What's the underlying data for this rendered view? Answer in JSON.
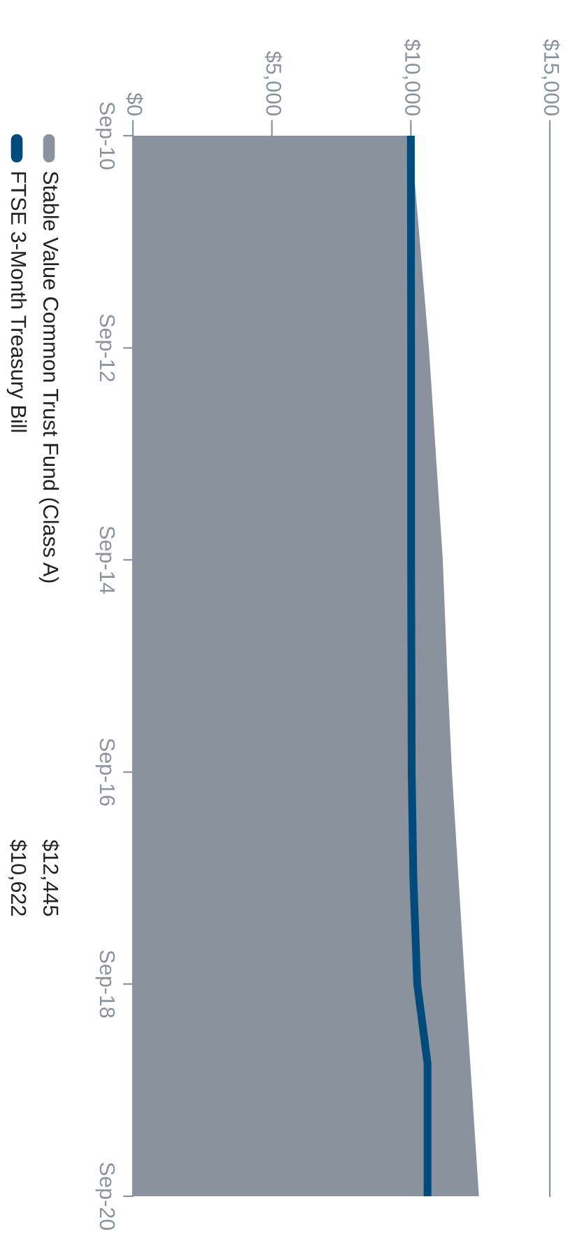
{
  "chart_data": {
    "type": "area",
    "orientation": "horizontal",
    "x": [
      "2010-09",
      "2012-09",
      "2014-09",
      "2015-09",
      "2016-09",
      "2018-09",
      "2020-09"
    ],
    "series": [
      {
        "name": "Stable Value Common Trust Fund (Class A)",
        "color": "#8a939d",
        "values": [
          10000,
          10650,
          11150,
          11300,
          11480,
          11950,
          12450
        ]
      },
      {
        "name": "FTSE 3-Month Treasury Bill",
        "type": "line",
        "color": "#004b7c",
        "x": [
          "2010-09",
          "2012-09",
          "2014-09",
          "2016-09",
          "2017-09",
          "2018-09",
          "2019-06",
          "2020-09"
        ],
        "values": [
          10000,
          10010,
          10010,
          10030,
          10090,
          10230,
          10600,
          10600
        ]
      }
    ],
    "xlim": [
      0,
      15000
    ],
    "xticks": [
      {
        "value": 0,
        "label": "$0"
      },
      {
        "value": 5000,
        "label": "$5,000"
      },
      {
        "value": 10000,
        "label": "$10,000"
      },
      {
        "value": 15000,
        "label": "$15,000"
      }
    ],
    "ylim": [
      "2020-09",
      "2010-09"
    ],
    "yticks": [
      {
        "value": "2010-09",
        "label": "Sep-10"
      },
      {
        "value": "2012-09",
        "label": "Sep-12"
      },
      {
        "value": "2014-09",
        "label": "Sep-14"
      },
      {
        "value": "2016-09",
        "label": "Sep-16"
      },
      {
        "value": "2018-09",
        "label": "Sep-18"
      },
      {
        "value": "2020-09",
        "label": "Sep-20"
      }
    ],
    "legend": "left",
    "annotations": [
      "$12,445",
      "$10,622"
    ]
  }
}
